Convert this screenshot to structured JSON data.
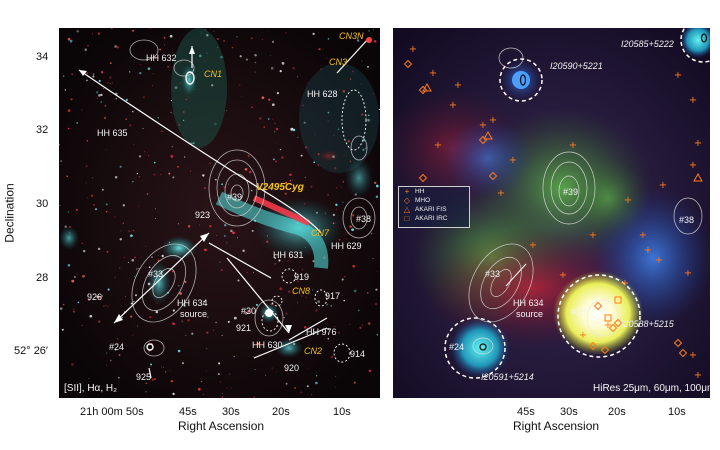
{
  "y_axis": {
    "title": "Declination",
    "ticks": [
      "34",
      "32",
      "30",
      "28",
      "52° 26′"
    ]
  },
  "left_x_axis": {
    "ticks": [
      "21h 00m 50s",
      "45s",
      "30s",
      "20s",
      "10s"
    ],
    "title": "Right Ascension"
  },
  "right_x_axis": {
    "ticks": [
      "45s",
      "30s",
      "20s",
      "10s"
    ],
    "title": "Right Ascension"
  },
  "left_panel": {
    "footer": "[SII], Hα, H₂",
    "labels": {
      "hh632": "HH 632",
      "cn1": "CN1",
      "cn3n": "CN3N",
      "cn3": "CN3",
      "hh628": "HH 628",
      "hh635": "HH 635",
      "star39": "#39",
      "v2495": "V2495Cyg",
      "star38": "#38",
      "n923": "923",
      "hh629": "HH 629",
      "hh631": "HH 631",
      "cn7": "CN7",
      "star33": "#33",
      "n919": "919",
      "cn8": "CN8",
      "n917": "917",
      "n926": "926",
      "hh634": "HH 634",
      "hh634src": "source",
      "star30": "#30",
      "n921": "921",
      "hh976": "HH 976",
      "hh630": "HH 630",
      "cn2": "CN2",
      "star24": "#24",
      "n920": "920",
      "n914": "914",
      "n925": "925"
    }
  },
  "right_panel": {
    "footer": "HiRes 25μm, 60μm, 100μm",
    "labels": {
      "i20585": "I20585+5222",
      "i20590": "I20590+5221",
      "star39": "#39",
      "star38": "#38",
      "star33": "#33",
      "hh634": "HH 634",
      "hh634src": "source",
      "star30": "#30",
      "i20588": "I20588+5215",
      "star24": "#24",
      "i20591": "I20591+5214"
    },
    "legend": [
      {
        "sym": "+",
        "label": "HH",
        "color": "#ff7a1a"
      },
      {
        "sym": "◇",
        "label": "MHO",
        "color": "#ff7a1a"
      },
      {
        "sym": "△",
        "label": "AKARI FIS",
        "color": "#ff7a1a"
      },
      {
        "sym": "□",
        "label": "AKARI IRC",
        "color": "#ff7a1a"
      }
    ]
  }
}
